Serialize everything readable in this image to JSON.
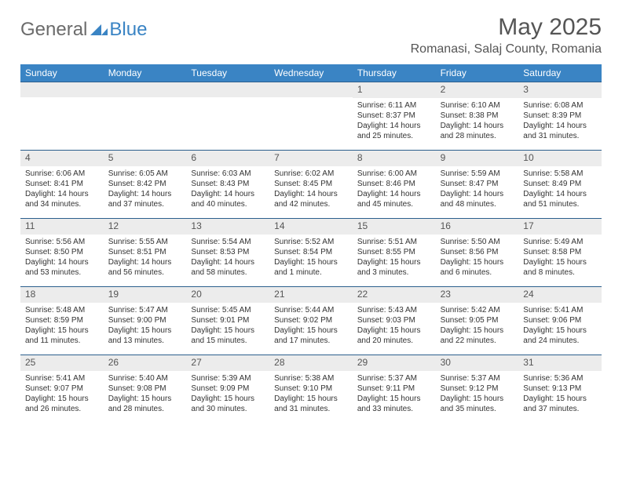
{
  "logo": {
    "gray": "General",
    "blue": "Blue"
  },
  "title": "May 2025",
  "location": "Romanasi, Salaj County, Romania",
  "colors": {
    "header_bg": "#3a84c4",
    "header_text": "#ffffff",
    "daynum_bg": "#ececec",
    "border": "#2c5f8d",
    "logo_gray": "#6b6b6b",
    "logo_blue": "#3a84c4"
  },
  "weekdays": [
    "Sunday",
    "Monday",
    "Tuesday",
    "Wednesday",
    "Thursday",
    "Friday",
    "Saturday"
  ],
  "weeks": [
    [
      null,
      null,
      null,
      null,
      {
        "n": "1",
        "sr": "6:11 AM",
        "ss": "8:37 PM",
        "dl": "14 hours and 25 minutes."
      },
      {
        "n": "2",
        "sr": "6:10 AM",
        "ss": "8:38 PM",
        "dl": "14 hours and 28 minutes."
      },
      {
        "n": "3",
        "sr": "6:08 AM",
        "ss": "8:39 PM",
        "dl": "14 hours and 31 minutes."
      }
    ],
    [
      {
        "n": "4",
        "sr": "6:06 AM",
        "ss": "8:41 PM",
        "dl": "14 hours and 34 minutes."
      },
      {
        "n": "5",
        "sr": "6:05 AM",
        "ss": "8:42 PM",
        "dl": "14 hours and 37 minutes."
      },
      {
        "n": "6",
        "sr": "6:03 AM",
        "ss": "8:43 PM",
        "dl": "14 hours and 40 minutes."
      },
      {
        "n": "7",
        "sr": "6:02 AM",
        "ss": "8:45 PM",
        "dl": "14 hours and 42 minutes."
      },
      {
        "n": "8",
        "sr": "6:00 AM",
        "ss": "8:46 PM",
        "dl": "14 hours and 45 minutes."
      },
      {
        "n": "9",
        "sr": "5:59 AM",
        "ss": "8:47 PM",
        "dl": "14 hours and 48 minutes."
      },
      {
        "n": "10",
        "sr": "5:58 AM",
        "ss": "8:49 PM",
        "dl": "14 hours and 51 minutes."
      }
    ],
    [
      {
        "n": "11",
        "sr": "5:56 AM",
        "ss": "8:50 PM",
        "dl": "14 hours and 53 minutes."
      },
      {
        "n": "12",
        "sr": "5:55 AM",
        "ss": "8:51 PM",
        "dl": "14 hours and 56 minutes."
      },
      {
        "n": "13",
        "sr": "5:54 AM",
        "ss": "8:53 PM",
        "dl": "14 hours and 58 minutes."
      },
      {
        "n": "14",
        "sr": "5:52 AM",
        "ss": "8:54 PM",
        "dl": "15 hours and 1 minute."
      },
      {
        "n": "15",
        "sr": "5:51 AM",
        "ss": "8:55 PM",
        "dl": "15 hours and 3 minutes."
      },
      {
        "n": "16",
        "sr": "5:50 AM",
        "ss": "8:56 PM",
        "dl": "15 hours and 6 minutes."
      },
      {
        "n": "17",
        "sr": "5:49 AM",
        "ss": "8:58 PM",
        "dl": "15 hours and 8 minutes."
      }
    ],
    [
      {
        "n": "18",
        "sr": "5:48 AM",
        "ss": "8:59 PM",
        "dl": "15 hours and 11 minutes."
      },
      {
        "n": "19",
        "sr": "5:47 AM",
        "ss": "9:00 PM",
        "dl": "15 hours and 13 minutes."
      },
      {
        "n": "20",
        "sr": "5:45 AM",
        "ss": "9:01 PM",
        "dl": "15 hours and 15 minutes."
      },
      {
        "n": "21",
        "sr": "5:44 AM",
        "ss": "9:02 PM",
        "dl": "15 hours and 17 minutes."
      },
      {
        "n": "22",
        "sr": "5:43 AM",
        "ss": "9:03 PM",
        "dl": "15 hours and 20 minutes."
      },
      {
        "n": "23",
        "sr": "5:42 AM",
        "ss": "9:05 PM",
        "dl": "15 hours and 22 minutes."
      },
      {
        "n": "24",
        "sr": "5:41 AM",
        "ss": "9:06 PM",
        "dl": "15 hours and 24 minutes."
      }
    ],
    [
      {
        "n": "25",
        "sr": "5:41 AM",
        "ss": "9:07 PM",
        "dl": "15 hours and 26 minutes."
      },
      {
        "n": "26",
        "sr": "5:40 AM",
        "ss": "9:08 PM",
        "dl": "15 hours and 28 minutes."
      },
      {
        "n": "27",
        "sr": "5:39 AM",
        "ss": "9:09 PM",
        "dl": "15 hours and 30 minutes."
      },
      {
        "n": "28",
        "sr": "5:38 AM",
        "ss": "9:10 PM",
        "dl": "15 hours and 31 minutes."
      },
      {
        "n": "29",
        "sr": "5:37 AM",
        "ss": "9:11 PM",
        "dl": "15 hours and 33 minutes."
      },
      {
        "n": "30",
        "sr": "5:37 AM",
        "ss": "9:12 PM",
        "dl": "15 hours and 35 minutes."
      },
      {
        "n": "31",
        "sr": "5:36 AM",
        "ss": "9:13 PM",
        "dl": "15 hours and 37 minutes."
      }
    ]
  ],
  "labels": {
    "sunrise": "Sunrise: ",
    "sunset": "Sunset: ",
    "daylight": "Daylight: "
  }
}
